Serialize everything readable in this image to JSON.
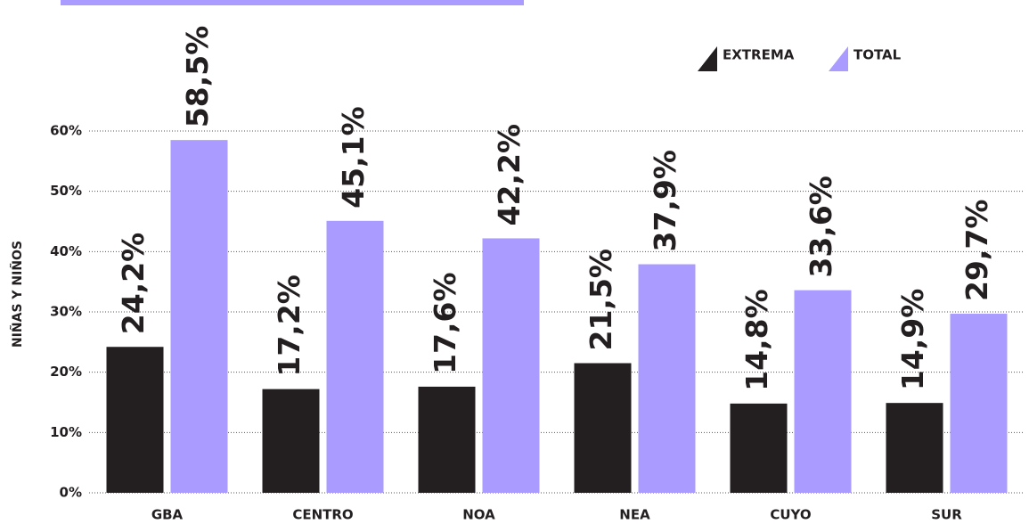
{
  "chart_data": {
    "type": "bar",
    "y_label": "NIÑAS Y NIÑOS",
    "categories": [
      "GBA",
      "CENTRO",
      "NOA",
      "NEA",
      "CUYO",
      "SUR"
    ],
    "series": [
      {
        "name": "EXTREMA",
        "color": "#231f20",
        "values": [
          24.2,
          17.2,
          17.6,
          21.5,
          14.8,
          14.9
        ],
        "value_labels": [
          "24,2%",
          "17,2%",
          "17,6%",
          "21,5%",
          "14,8%",
          "14,9%"
        ]
      },
      {
        "name": "TOTAL",
        "color": "#a99bff",
        "values": [
          58.5,
          45.1,
          42.2,
          37.9,
          33.6,
          29.7
        ],
        "value_labels": [
          "58,5%",
          "45,1%",
          "42,2%",
          "37,9%",
          "33,6%",
          "29,7%"
        ]
      }
    ],
    "ylim": [
      0,
      60
    ],
    "yticks": [
      {
        "value": 0,
        "label": "0%"
      },
      {
        "value": 10,
        "label": "10%"
      },
      {
        "value": 20,
        "label": "20%"
      },
      {
        "value": 30,
        "label": "30%"
      },
      {
        "value": 40,
        "label": "40%"
      },
      {
        "value": 50,
        "label": "50%"
      },
      {
        "value": 60,
        "label": "60%"
      }
    ],
    "grid": true,
    "legend": "top-right"
  }
}
